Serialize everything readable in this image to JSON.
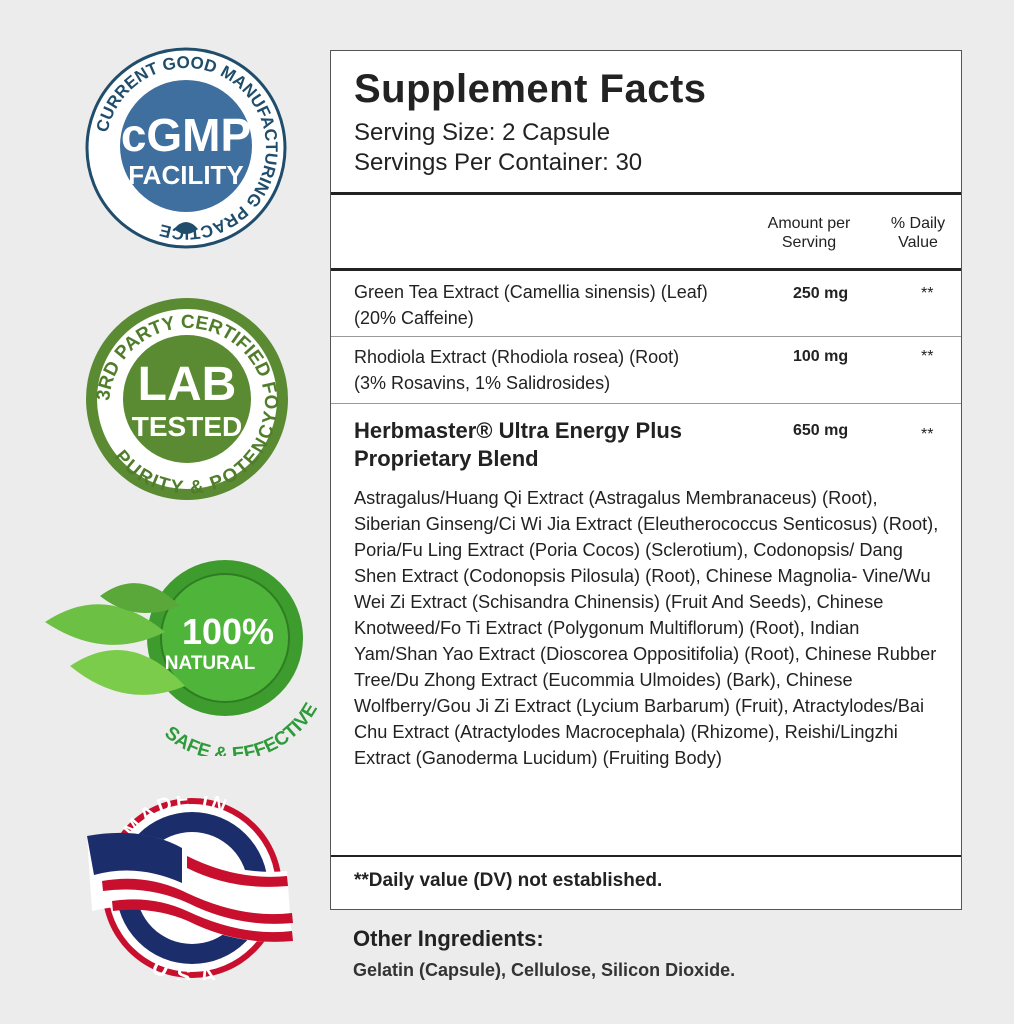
{
  "badges": {
    "cgmp": {
      "ring_text": "CURRENT GOOD MANUFACTURING PRACTICE",
      "main": "cGMP",
      "sub": "FACILITY",
      "color": "#3f6f9e",
      "dark": "#1f4d6b"
    },
    "lab": {
      "top_text": "3RD PARTY CERTIFIED FOR",
      "bottom_text": "PURITY & POTENCY",
      "main": "LAB",
      "sub": "TESTED",
      "color": "#5a8a32"
    },
    "natural": {
      "main": "100%",
      "sub": "NATURAL",
      "arc_text": "SAFE & EFFECTIVE",
      "color": "#3e9b2e"
    },
    "usa": {
      "top_text": "MADE IN",
      "bottom_text": "USA",
      "color": "#c8102e",
      "navy": "#1c2d6b"
    }
  },
  "facts": {
    "title": "Supplement Facts",
    "serving_size": "Serving Size: 2 Capsule",
    "servings_per_container": "Servings Per Container: 30",
    "col_amount": "Amount per Serving",
    "col_dv": "% Daily Value",
    "rows": [
      {
        "name": "Green Tea Extract (Camellia sinensis) (Leaf)",
        "detail": "(20% Caffeine)",
        "amount": "250 mg",
        "dv": "**"
      },
      {
        "name": "Rhodiola Extract (Rhodiola rosea) (Root)",
        "detail": "(3% Rosavins, 1% Salidrosides)",
        "amount": "100 mg",
        "dv": "**"
      }
    ],
    "blend": {
      "name": "Herbmaster® Ultra Energy Plus Proprietary Blend",
      "amount": "650 mg",
      "dv": "**",
      "ingredients": "Astragalus/Huang Qi Extract (Astragalus Membranaceus) (Root), Siberian Ginseng/Ci Wi Jia Extract (Eleutherococcus Senticosus) (Root), Poria/Fu Ling Extract (Poria Cocos) (Sclerotium), Codonopsis/ Dang Shen Extract (Codonopsis Pilosula) (Root), Chinese Magnolia- Vine/Wu Wei Zi Extract (Schisandra Chinensis) (Fruit And Seeds), Chinese Knotweed/Fo Ti Extract (Polygonum Multiflorum) (Root), Indian Yam/Shan Yao Extract (Dioscorea Oppositifolia) (Root), Chinese Rubber Tree/Du Zhong Extract (Eucommia Ulmoides) (Bark), Chinese Wolfberry/Gou Ji Zi Extract (Lycium Barbarum) (Fruit), Atractylodes/Bai Chu Extract (Atractylodes Macrocephala) (Rhizome), Reishi/Lingzhi Extract (Ganoderma Lucidum) (Fruiting Body)"
    },
    "footnote": "**Daily value (DV) not established."
  },
  "other": {
    "heading": "Other Ingredients:",
    "text": "Gelatin (Capsule), Cellulose, Silicon Dioxide."
  }
}
